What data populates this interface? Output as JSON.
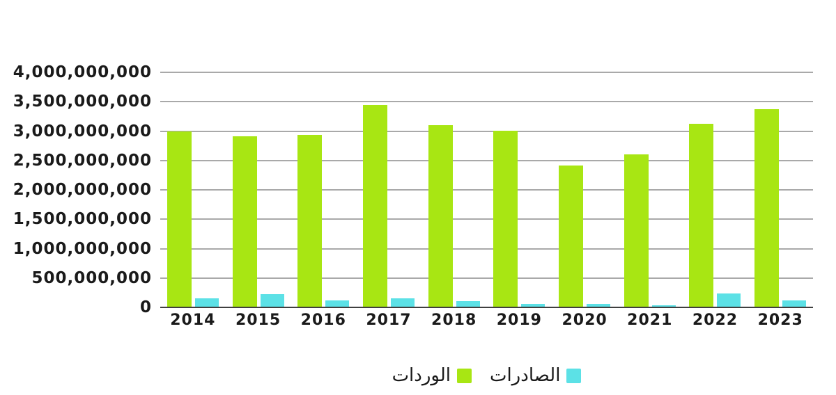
{
  "page": {
    "background": "#ffffff",
    "title": ""
  },
  "chart_data": {
    "type": "bar",
    "title": "",
    "xlabel": "",
    "ylabel": "",
    "categories": [
      "2014",
      "2015",
      "2016",
      "2017",
      "2018",
      "2019",
      "2020",
      "2021",
      "2022",
      "2023"
    ],
    "series": [
      {
        "id": "imports",
        "label": "الوردات",
        "color": "#a8e613",
        "values": [
          3000000000,
          2910000000,
          2940000000,
          3440000000,
          3100000000,
          3010000000,
          2420000000,
          2600000000,
          3120000000,
          3370000000
        ]
      },
      {
        "id": "exports",
        "label": "الصادرات",
        "color": "#5ce1e6",
        "values": [
          150000000,
          230000000,
          120000000,
          150000000,
          110000000,
          65000000,
          65000000,
          40000000,
          235000000,
          120000000
        ]
      }
    ],
    "ylim": [
      0,
      4000000000
    ],
    "ytick_step": 500000000,
    "ytick_labels": [
      "4,000,000,000",
      "3,500,000,000",
      "3,000,000,000",
      "2,500,000,000",
      "2,000,000,000",
      "1,500,000,000",
      "1,000,000,000",
      "500,000,000",
      "0"
    ],
    "grid": true,
    "gridline_color": "#a9a9a9",
    "axis_line_color": "#3f3f3f",
    "axis_text_color": "#1a1a1a",
    "legend_position": "bottom-center",
    "legend_direction": "rtl"
  },
  "legend": {
    "items": [
      {
        "id": "exports",
        "label": "الصادرات",
        "color": "#5ce1e6"
      },
      {
        "id": "imports",
        "label": "الوردات",
        "color": "#a8e613"
      }
    ]
  }
}
